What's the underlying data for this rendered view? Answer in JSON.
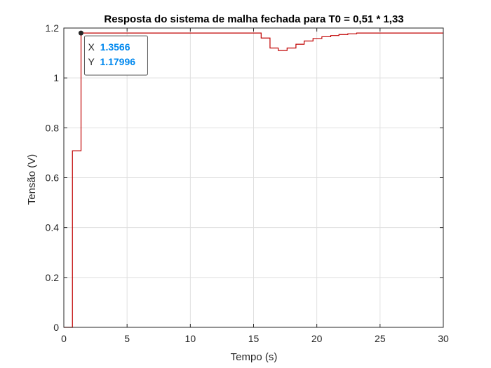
{
  "chart_data": {
    "type": "line",
    "title": "Resposta do sistema de malha fechada para T0 = 0,51  * 1,33",
    "xlabel": "Tempo (s)",
    "ylabel": "Tensão (V)",
    "xlim": [
      0,
      30
    ],
    "ylim": [
      0,
      1.2
    ],
    "xticks": [
      0,
      5,
      10,
      15,
      20,
      25,
      30
    ],
    "yticks": [
      0,
      0.2,
      0.4,
      0.6,
      0.8,
      1,
      1.2
    ],
    "xtick_labels": [
      "0",
      "5",
      "10",
      "15",
      "20",
      "25",
      "30"
    ],
    "ytick_labels": [
      "0",
      "0.2",
      "0.4",
      "0.6",
      "0.8",
      "1",
      "1.2"
    ],
    "grid": true,
    "series": [
      {
        "color": "#c00000",
        "style": "stairs",
        "x": [
          0,
          0.68,
          0.68,
          1.36,
          1.36,
          15.6,
          15.6,
          16.3,
          16.3,
          16.95,
          16.95,
          17.65,
          17.65,
          18.35,
          18.35,
          19.0,
          19.0,
          19.7,
          19.7,
          20.4,
          20.4,
          21.1,
          21.1,
          21.75,
          21.75,
          22.45,
          22.45,
          23.15,
          23.15,
          30
        ],
        "y": [
          0,
          0,
          0.708,
          0.708,
          1.18,
          1.18,
          1.16,
          1.16,
          1.12,
          1.12,
          1.11,
          1.11,
          1.12,
          1.12,
          1.135,
          1.135,
          1.148,
          1.148,
          1.158,
          1.158,
          1.165,
          1.165,
          1.17,
          1.17,
          1.174,
          1.174,
          1.177,
          1.177,
          1.18,
          1.18
        ]
      }
    ],
    "datatip": {
      "x": 1.3566,
      "y": 1.17996,
      "x_label": "X",
      "y_label": "Y",
      "x_text": "1.3566",
      "y_text": "1.17996"
    }
  },
  "colors": {
    "axes": "#262626",
    "grid": "#dfdfdf",
    "line": "#c00000",
    "datatip_value": "#0088ee"
  }
}
